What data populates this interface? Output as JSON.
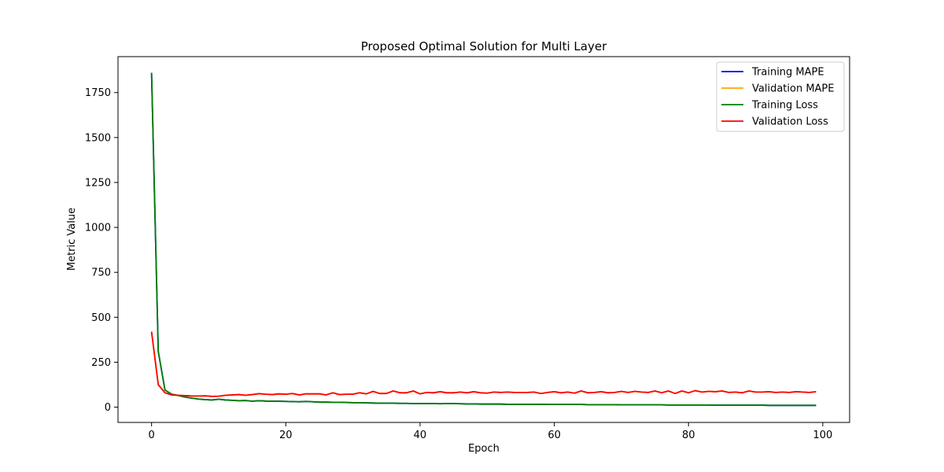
{
  "chart_data": {
    "type": "line",
    "title": "Proposed Optimal Solution for Multi Layer",
    "xlabel": "Epoch",
    "ylabel": "Metric Value",
    "xlim": [
      -5,
      104
    ],
    "ylim": [
      -85,
      1950
    ],
    "xticks": [
      0,
      20,
      40,
      60,
      80,
      100
    ],
    "yticks": [
      0,
      250,
      500,
      750,
      1000,
      1250,
      1500,
      1750
    ],
    "grid": false,
    "legend_position": "upper-right",
    "x": [
      0,
      1,
      2,
      3,
      4,
      5,
      6,
      7,
      8,
      9,
      10,
      11,
      12,
      13,
      14,
      15,
      16,
      17,
      18,
      19,
      20,
      21,
      22,
      23,
      24,
      25,
      26,
      27,
      28,
      29,
      30,
      31,
      32,
      33,
      34,
      35,
      36,
      37,
      38,
      39,
      40,
      41,
      42,
      43,
      44,
      45,
      46,
      47,
      48,
      49,
      50,
      51,
      52,
      53,
      54,
      55,
      56,
      57,
      58,
      59,
      60,
      61,
      62,
      63,
      64,
      65,
      66,
      67,
      68,
      69,
      70,
      71,
      72,
      73,
      74,
      75,
      76,
      77,
      78,
      79,
      80,
      81,
      82,
      83,
      84,
      85,
      86,
      87,
      88,
      89,
      90,
      91,
      92,
      93,
      94,
      95,
      96,
      97,
      98,
      99
    ],
    "series": [
      {
        "name": "Training MAPE",
        "color": "#0000ff",
        "values": [
          1860,
          310,
          95,
          72,
          65,
          56,
          50,
          45,
          42,
          40,
          44,
          40,
          38,
          36,
          37,
          33,
          36,
          34,
          33,
          33,
          32,
          31,
          30,
          32,
          30,
          28,
          28,
          27,
          27,
          26,
          25,
          25,
          24,
          23,
          22,
          22,
          22,
          21,
          21,
          20,
          20,
          20,
          20,
          19,
          20,
          20,
          19,
          18,
          18,
          17,
          17,
          17,
          17,
          16,
          16,
          16,
          16,
          16,
          16,
          15,
          15,
          15,
          15,
          15,
          15,
          14,
          14,
          14,
          14,
          14,
          13,
          13,
          13,
          13,
          13,
          13,
          13,
          12,
          12,
          12,
          12,
          12,
          12,
          12,
          11,
          11,
          11,
          11,
          11,
          11,
          11,
          11,
          10,
          10,
          10,
          10,
          10,
          10,
          10,
          10
        ]
      },
      {
        "name": "Validation MAPE",
        "color": "#ffa500",
        "values": [
          420,
          125,
          80,
          68,
          66,
          64,
          62,
          62,
          63,
          60,
          61,
          66,
          68,
          70,
          66,
          70,
          75,
          72,
          70,
          74,
          72,
          76,
          68,
          74,
          74,
          74,
          68,
          80,
          70,
          72,
          72,
          80,
          74,
          88,
          76,
          76,
          90,
          80,
          80,
          90,
          74,
          82,
          80,
          86,
          80,
          80,
          84,
          80,
          86,
          80,
          78,
          84,
          82,
          84,
          82,
          82,
          82,
          84,
          76,
          82,
          86,
          80,
          84,
          78,
          90,
          80,
          82,
          86,
          80,
          82,
          88,
          82,
          88,
          84,
          82,
          90,
          80,
          90,
          76,
          90,
          80,
          92,
          84,
          88,
          86,
          90,
          82,
          84,
          80,
          90,
          84,
          84,
          86,
          82,
          84,
          82,
          86,
          84,
          82,
          86
        ]
      },
      {
        "name": "Training Loss",
        "color": "#008000",
        "values": [
          1860,
          310,
          95,
          72,
          65,
          56,
          50,
          45,
          42,
          40,
          44,
          40,
          38,
          36,
          37,
          33,
          36,
          34,
          33,
          33,
          32,
          31,
          30,
          32,
          30,
          28,
          28,
          27,
          27,
          26,
          25,
          25,
          24,
          23,
          22,
          22,
          22,
          21,
          21,
          20,
          20,
          20,
          20,
          19,
          20,
          20,
          19,
          18,
          18,
          17,
          17,
          17,
          17,
          16,
          16,
          16,
          16,
          16,
          16,
          15,
          15,
          15,
          15,
          15,
          15,
          14,
          14,
          14,
          14,
          14,
          13,
          13,
          13,
          13,
          13,
          13,
          13,
          12,
          12,
          12,
          12,
          12,
          12,
          12,
          11,
          11,
          11,
          11,
          11,
          11,
          11,
          11,
          10,
          10,
          10,
          10,
          10,
          10,
          10,
          10
        ]
      },
      {
        "name": "Validation Loss",
        "color": "#ff0000",
        "values": [
          420,
          125,
          80,
          68,
          66,
          64,
          62,
          62,
          63,
          60,
          61,
          66,
          68,
          70,
          66,
          70,
          75,
          72,
          70,
          74,
          72,
          76,
          68,
          74,
          74,
          74,
          68,
          80,
          70,
          72,
          72,
          80,
          74,
          88,
          76,
          76,
          90,
          80,
          80,
          90,
          74,
          82,
          80,
          86,
          80,
          80,
          84,
          80,
          86,
          80,
          78,
          84,
          82,
          84,
          82,
          82,
          82,
          84,
          76,
          82,
          86,
          80,
          84,
          78,
          90,
          80,
          82,
          86,
          80,
          82,
          88,
          82,
          88,
          84,
          82,
          90,
          80,
          90,
          76,
          90,
          80,
          92,
          84,
          88,
          86,
          90,
          82,
          84,
          80,
          90,
          84,
          84,
          86,
          82,
          84,
          82,
          86,
          84,
          82,
          86
        ]
      }
    ]
  }
}
